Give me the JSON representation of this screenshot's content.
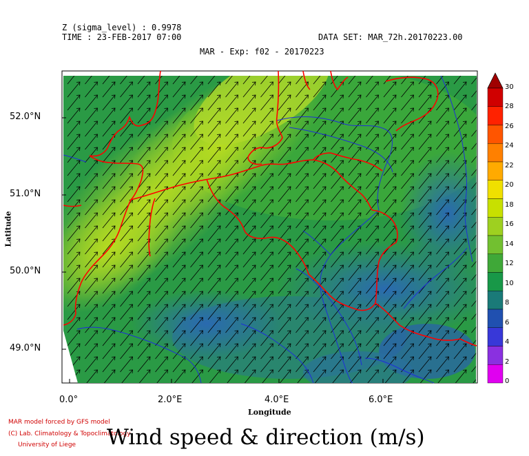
{
  "header": {
    "z_line": "Z (sigma_level) : 0.9978",
    "time_line": "TIME : 23-FEB-2017 07:00",
    "dataset_line": "DATA SET: MAR_72h.20170223.00",
    "plot_title": "MAR - Exp: f02 - 20170223"
  },
  "axes": {
    "y_label": "Latitude",
    "x_label": "Longitude",
    "lat_ticks": [
      "52.0°N",
      "51.0°N",
      "50.0°N",
      "49.0°N"
    ],
    "lon_ticks": [
      "0.0°",
      "2.0°E",
      "4.0°E",
      "6.0°E"
    ]
  },
  "colorbar": {
    "labels": [
      "30",
      "28",
      "26",
      "24",
      "22",
      "20",
      "18",
      "16",
      "14",
      "12",
      "10",
      "8",
      "6",
      "4",
      "2",
      "0"
    ],
    "colors": [
      "#d00000",
      "#ff2200",
      "#ff5500",
      "#ff8000",
      "#ffaa00",
      "#f0e000",
      "#c8e000",
      "#9ed020",
      "#72c030",
      "#3fa838",
      "#189848",
      "#1a7a78",
      "#2050b0",
      "#3838d8",
      "#8a30e0",
      "#e000f0"
    ]
  },
  "map": {
    "variable": "wind speed and direction",
    "region": "Belgium / Benelux",
    "feature_colors": {
      "borders": "#ff0000",
      "rivers": "#1f2fd8",
      "arrows": "#000000"
    }
  },
  "credits": {
    "line1": "MAR model forced by GFS model",
    "line2": "(C) Lab. Climatology & Topoclimatology",
    "line3": "University of Liege"
  },
  "title": "Wind speed & direction (m/s)"
}
